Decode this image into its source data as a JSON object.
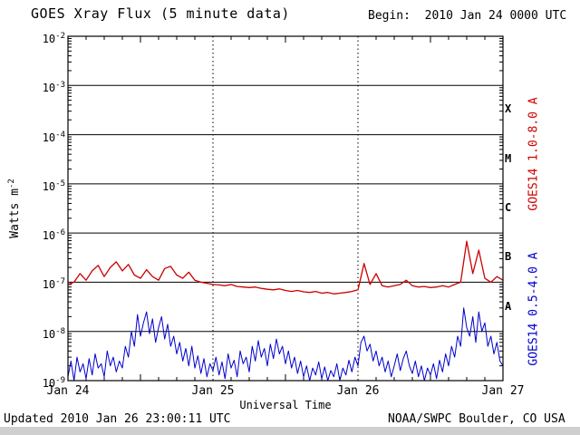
{
  "title": "GOES Xray Flux (5 minute data)",
  "begin_label": "Begin:  2010 Jan 24 0000 UTC",
  "footer": {
    "updated": "Updated 2010 Jan 26 23:00:11 UTC",
    "credit": "NOAA/SWPC Boulder, CO USA"
  },
  "side_labels": {
    "long": "GOES14 1.0-8.0 A",
    "short": "GOES14 0.5-4.0 A"
  },
  "colors": {
    "long": "#cc0000",
    "short": "#0000cc",
    "frame": "#000000",
    "grid": "#000000"
  },
  "axes": {
    "xlabel": "Universal Time",
    "ylabel_prefix": "Watts m",
    "ylabel_exp": "-2",
    "x_tick_labels": [
      "Jan 24",
      "Jan 25",
      "Jan 26",
      "Jan 27"
    ],
    "x_tick_hours": [
      0,
      24,
      48,
      72
    ],
    "day_gridline_hours": [
      24,
      48
    ],
    "y_tick_exponents": [
      -2,
      -3,
      -4,
      -5,
      -6,
      -7,
      -8,
      -9
    ],
    "flare_classes": [
      {
        "letter": "X",
        "mid_exponent": -3.5
      },
      {
        "letter": "M",
        "mid_exponent": -4.5
      },
      {
        "letter": "C",
        "mid_exponent": -5.5
      },
      {
        "letter": "B",
        "mid_exponent": -6.5
      },
      {
        "letter": "A",
        "mid_exponent": -7.5
      }
    ]
  },
  "chart_data": {
    "type": "line",
    "title": "GOES Xray Flux (5 minute data)",
    "xlabel": "Universal Time",
    "ylabel": "Watts m^-2",
    "x_unit": "hours since 2010 Jan 24 0000 UTC",
    "x_range_hours": [
      0,
      72
    ],
    "x_tick_labels": [
      "Jan 24",
      "Jan 25",
      "Jan 26",
      "Jan 27"
    ],
    "y_scale": "log",
    "ylim": [
      1e-09,
      0.01
    ],
    "grid": "horizontal solid per decade, vertical dotted per day",
    "legend_position": "right-rotated",
    "series": [
      {
        "name": "GOES14 1.0-8.0 A",
        "color": "#cc0000",
        "values": [
          9e-08,
          1e-07,
          1.5e-07,
          1.1e-07,
          1.7e-07,
          2.2e-07,
          1.3e-07,
          2e-07,
          2.6e-07,
          1.7e-07,
          2.3e-07,
          1.4e-07,
          1.2e-07,
          1.8e-07,
          1.3e-07,
          1.1e-07,
          1.9e-07,
          2.1e-07,
          1.4e-07,
          1.2e-07,
          1.6e-07,
          1.1e-07,
          1e-07,
          9.5e-08,
          9e-08,
          8.8e-08,
          8.5e-08,
          9e-08,
          8.2e-08,
          8e-08,
          7.8e-08,
          8e-08,
          7.5e-08,
          7.2e-08,
          7e-08,
          7.3e-08,
          6.8e-08,
          6.5e-08,
          6.8e-08,
          6.4e-08,
          6.2e-08,
          6.5e-08,
          6e-08,
          6.2e-08,
          5.8e-08,
          6e-08,
          6.2e-08,
          6.5e-08,
          7e-08,
          2.4e-07,
          9e-08,
          1.5e-07,
          8.5e-08,
          8e-08,
          8.5e-08,
          9e-08,
          1.1e-07,
          8.5e-08,
          8e-08,
          8.2e-08,
          7.8e-08,
          8e-08,
          8.5e-08,
          8e-08,
          9e-08,
          1e-07,
          6.8e-07,
          1.5e-07,
          4.5e-07,
          1.2e-07,
          1e-07,
          1.3e-07,
          1.1e-07
        ]
      },
      {
        "name": "GOES14 0.5-4.0 A",
        "color": "#0000cc",
        "values": [
          1.2e-09,
          2.5e-09,
          1e-09,
          3e-09,
          1.5e-09,
          2.2e-09,
          1.1e-09,
          2.8e-09,
          1.3e-09,
          3.5e-09,
          1.8e-09,
          2.2e-09,
          1.2e-09,
          4e-09,
          2e-09,
          3e-09,
          1.5e-09,
          2.5e-09,
          1.8e-09,
          5e-09,
          3e-09,
          1e-08,
          5e-09,
          2.2e-08,
          8e-09,
          1.5e-08,
          2.5e-08,
          9e-09,
          1.8e-08,
          6e-09,
          1.2e-08,
          2e-08,
          7e-09,
          1.4e-08,
          5e-09,
          8e-09,
          3.5e-09,
          6e-09,
          2.5e-09,
          4.5e-09,
          2e-09,
          5e-09,
          1.8e-09,
          3.2e-09,
          1.4e-09,
          2.8e-09,
          1.2e-09,
          2.2e-09,
          1.6e-09,
          3e-09,
          1.3e-09,
          2.4e-09,
          1.1e-09,
          3.5e-09,
          1.8e-09,
          2.6e-09,
          1.2e-09,
          4e-09,
          2.2e-09,
          3e-09,
          1.5e-09,
          5e-09,
          2.5e-09,
          6.5e-09,
          3e-09,
          4.5e-09,
          2e-09,
          5.5e-09,
          2.8e-09,
          7e-09,
          3.5e-09,
          5e-09,
          2.2e-09,
          4e-09,
          1.8e-09,
          3e-09,
          1.4e-09,
          2.5e-09,
          1.2e-09,
          2e-09,
          1e-09,
          1.8e-09,
          1.3e-09,
          2.4e-09,
          1.1e-09,
          1.9e-09,
          1e-09,
          1.6e-09,
          1.2e-09,
          2.2e-09,
          1e-09,
          1.8e-09,
          1.3e-09,
          2.6e-09,
          1.5e-09,
          3e-09,
          2e-09,
          6e-09,
          8e-09,
          4e-09,
          5.5e-09,
          2.5e-09,
          4e-09,
          2e-09,
          3e-09,
          1.5e-09,
          2.5e-09,
          1.2e-09,
          2e-09,
          3.5e-09,
          1.6e-09,
          2.8e-09,
          4e-09,
          2e-09,
          1.4e-09,
          2.5e-09,
          1.2e-09,
          2e-09,
          1e-09,
          1.8e-09,
          1.3e-09,
          2.2e-09,
          1.1e-09,
          2.6e-09,
          1.5e-09,
          3.5e-09,
          2e-09,
          5e-09,
          3e-09,
          8e-09,
          5e-09,
          3e-08,
          1.2e-08,
          8e-09,
          2e-08,
          6e-09,
          2.5e-08,
          1e-08,
          1.5e-08,
          5e-09,
          8e-09,
          3.5e-09,
          6e-09,
          2.5e-09,
          2e-09
        ]
      }
    ]
  }
}
